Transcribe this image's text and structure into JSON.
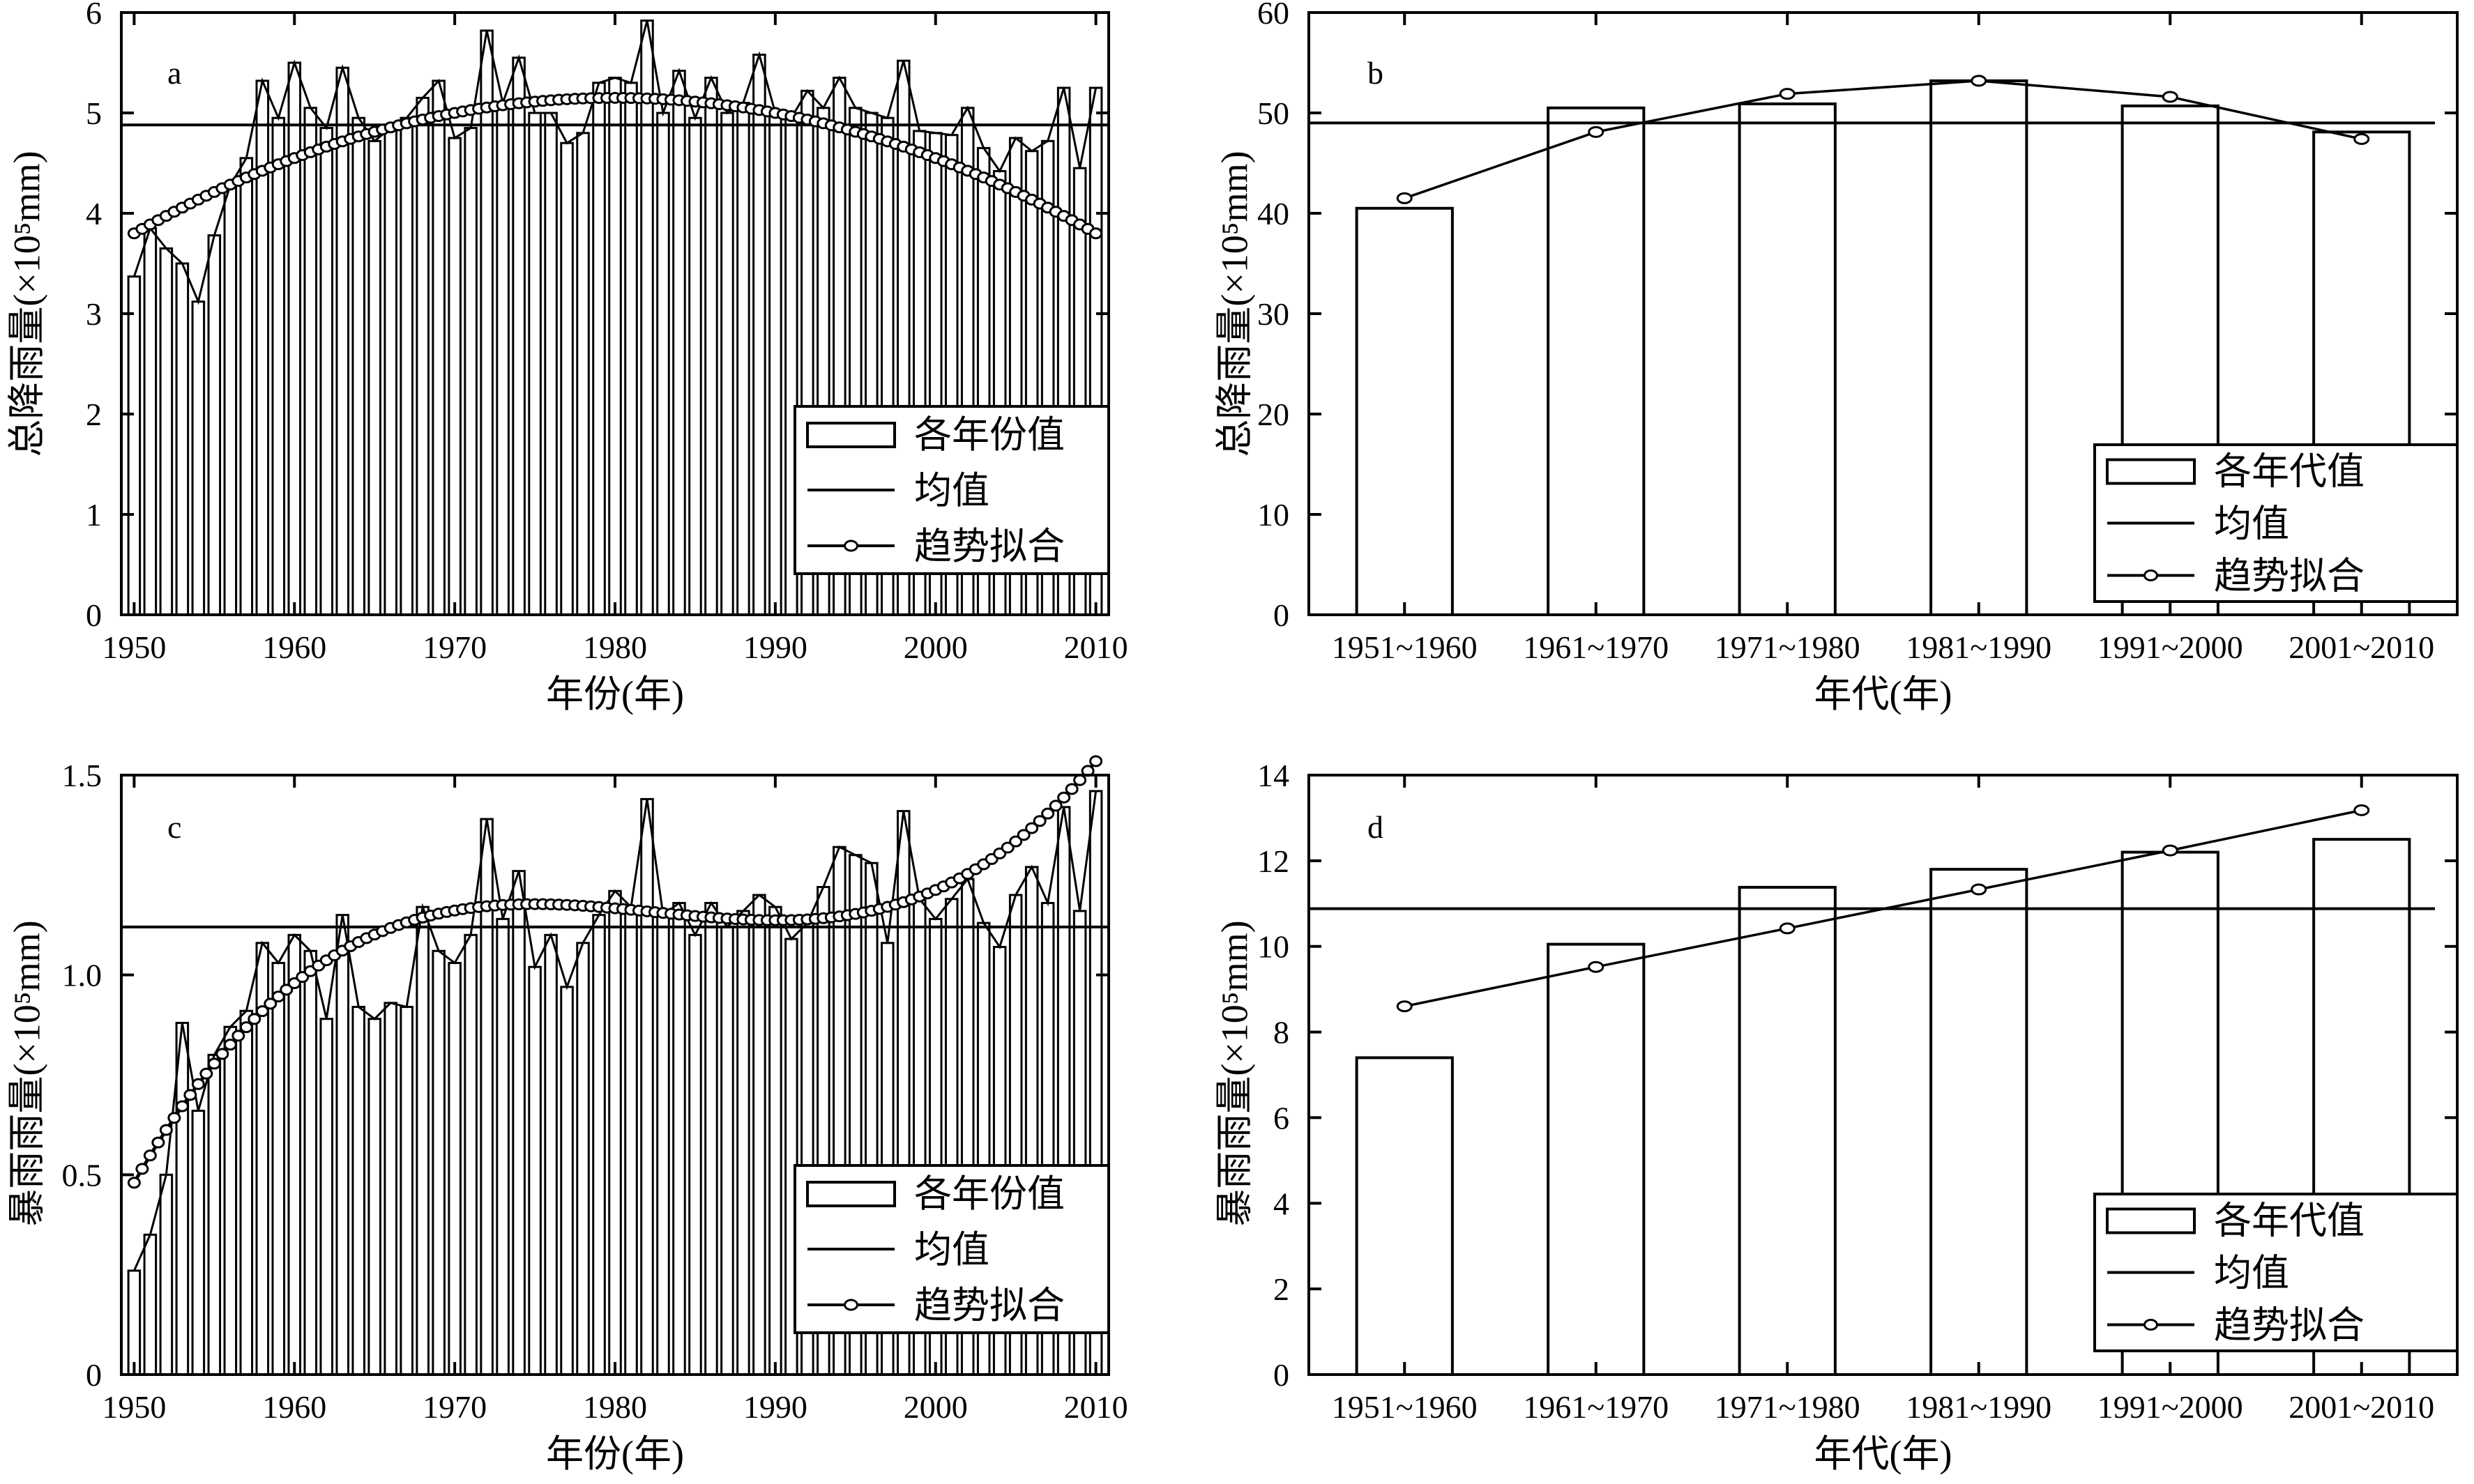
{
  "chart_data": [
    {
      "type": "bar",
      "panel_letter": "a",
      "xlabel": "年份(年)",
      "ylabel": "总降雨量(×10⁵mm)",
      "x": [
        1950,
        1951,
        1952,
        1953,
        1954,
        1955,
        1956,
        1957,
        1958,
        1959,
        1960,
        1961,
        1962,
        1963,
        1964,
        1965,
        1966,
        1967,
        1968,
        1969,
        1970,
        1971,
        1972,
        1973,
        1974,
        1975,
        1976,
        1977,
        1978,
        1979,
        1980,
        1981,
        1982,
        1983,
        1984,
        1985,
        1986,
        1987,
        1988,
        1989,
        1990,
        1991,
        1992,
        1993,
        1994,
        1995,
        1996,
        1997,
        1998,
        1999,
        2000,
        2001,
        2002,
        2003,
        2004,
        2005,
        2006,
        2007,
        2008,
        2009,
        2010
      ],
      "xlim": [
        1949.2,
        2010.8
      ],
      "ylim": [
        0,
        6
      ],
      "xticks": [
        1950,
        1960,
        1970,
        1980,
        1990,
        2000,
        2010
      ],
      "xtick_labels": [
        "1950",
        "1960",
        "1970",
        "1980",
        "1990",
        "2000",
        "2010"
      ],
      "yticks": [
        0,
        1,
        2,
        3,
        4,
        5,
        6
      ],
      "ytick_labels": [
        "0",
        "1",
        "2",
        "3",
        "4",
        "5",
        "6"
      ],
      "series": [
        {
          "name": "各年份值",
          "kind": "bar",
          "values": [
            3.37,
            3.85,
            3.65,
            3.5,
            3.12,
            3.78,
            4.28,
            4.55,
            5.32,
            4.95,
            5.5,
            5.05,
            4.85,
            5.45,
            4.95,
            4.72,
            4.85,
            4.95,
            5.15,
            5.32,
            4.75,
            4.85,
            5.82,
            5.1,
            5.55,
            5.0,
            5.0,
            4.7,
            4.8,
            5.3,
            5.35,
            5.3,
            5.92,
            5.0,
            5.42,
            4.95,
            5.35,
            5.0,
            5.1,
            5.58,
            5.0,
            4.95,
            5.22,
            5.05,
            5.35,
            5.05,
            5.0,
            4.95,
            5.52,
            4.82,
            4.8,
            4.78,
            5.05,
            4.65,
            4.42,
            4.75,
            4.62,
            4.72,
            5.25,
            4.45,
            5.25
          ]
        },
        {
          "name": "均值",
          "kind": "hline",
          "value": 4.88
        },
        {
          "name": "趋势拟合",
          "kind": "polyfit",
          "mode": "annual",
          "coefficients": [
            3.8,
            0.09,
            -0.0015
          ]
        }
      ],
      "legend": [
        "各年份值",
        "均值",
        "趋势拟合"
      ],
      "legend_position": "bottom-right"
    },
    {
      "type": "bar",
      "panel_letter": "b",
      "xlabel": "年代(年)",
      "ylabel": "总降雨量(×10⁵mm)",
      "categories": [
        "1951~1960",
        "1961~1970",
        "1971~1980",
        "1981~1990",
        "1991~2000",
        "2001~2010"
      ],
      "ylim": [
        0,
        60
      ],
      "yticks": [
        0,
        10,
        20,
        30,
        40,
        50,
        60
      ],
      "ytick_labels": [
        "0",
        "10",
        "20",
        "30",
        "40",
        "50",
        "60"
      ],
      "series": [
        {
          "name": "各年代值",
          "kind": "bar",
          "values": [
            40.5,
            50.5,
            50.9,
            53.2,
            50.7,
            48.1
          ]
        },
        {
          "name": "均值",
          "kind": "hline",
          "value": 49.0
        },
        {
          "name": "趋势拟合",
          "kind": "line",
          "values": [
            41.5,
            48.1,
            51.9,
            53.2,
            51.6,
            47.4
          ]
        }
      ],
      "legend": [
        "各年代值",
        "均值",
        "趋势拟合"
      ],
      "legend_position": "bottom-right"
    },
    {
      "type": "bar",
      "panel_letter": "c",
      "xlabel": "年份(年)",
      "ylabel": "暴雨雨量(×10⁵mm)",
      "x": [
        1950,
        1951,
        1952,
        1953,
        1954,
        1955,
        1956,
        1957,
        1958,
        1959,
        1960,
        1961,
        1962,
        1963,
        1964,
        1965,
        1966,
        1967,
        1968,
        1969,
        1970,
        1971,
        1972,
        1973,
        1974,
        1975,
        1976,
        1977,
        1978,
        1979,
        1980,
        1981,
        1982,
        1983,
        1984,
        1985,
        1986,
        1987,
        1988,
        1989,
        1990,
        1991,
        1992,
        1993,
        1994,
        1995,
        1996,
        1997,
        1998,
        1999,
        2000,
        2001,
        2002,
        2003,
        2004,
        2005,
        2006,
        2007,
        2008,
        2009,
        2010
      ],
      "xlim": [
        1949.2,
        2010.8
      ],
      "ylim": [
        0,
        1.5
      ],
      "xticks": [
        1950,
        1960,
        1970,
        1980,
        1990,
        2000,
        2010
      ],
      "xtick_labels": [
        "1950",
        "1960",
        "1970",
        "1980",
        "1990",
        "2000",
        "2010"
      ],
      "yticks": [
        0,
        0.5,
        1.0,
        1.5
      ],
      "ytick_labels": [
        "0",
        "0.5",
        "1.0",
        "1.5"
      ],
      "series": [
        {
          "name": "各年份值",
          "kind": "bar",
          "values": [
            0.26,
            0.35,
            0.5,
            0.88,
            0.66,
            0.8,
            0.87,
            0.91,
            1.08,
            1.03,
            1.1,
            1.06,
            0.89,
            1.15,
            0.92,
            0.89,
            0.93,
            0.92,
            1.17,
            1.06,
            1.03,
            1.1,
            1.39,
            1.14,
            1.26,
            1.02,
            1.1,
            0.97,
            1.08,
            1.15,
            1.21,
            1.17,
            1.44,
            1.15,
            1.18,
            1.1,
            1.18,
            1.12,
            1.16,
            1.2,
            1.17,
            1.09,
            1.13,
            1.22,
            1.32,
            1.3,
            1.28,
            1.08,
            1.41,
            1.19,
            1.14,
            1.19,
            1.24,
            1.13,
            1.07,
            1.2,
            1.27,
            1.18,
            1.42,
            1.16,
            1.46
          ]
        },
        {
          "name": "均值",
          "kind": "hline",
          "value": 1.12
        },
        {
          "name": "趋势拟合",
          "kind": "polyfit",
          "mode": "annual",
          "coefficients": [
            0.48,
            0.0705,
            -0.002292,
            2.35e-05
          ]
        }
      ],
      "legend": [
        "各年份值",
        "均值",
        "趋势拟合"
      ],
      "legend_position": "bottom-right"
    },
    {
      "type": "bar",
      "panel_letter": "d",
      "xlabel": "年代(年)",
      "ylabel": "暴雨雨量(×10⁵mm)",
      "categories": [
        "1951~1960",
        "1961~1970",
        "1971~1980",
        "1981~1990",
        "1991~2000",
        "2001~2010"
      ],
      "ylim": [
        0,
        14
      ],
      "yticks": [
        0,
        2,
        4,
        6,
        8,
        10,
        12,
        14
      ],
      "ytick_labels": [
        "0",
        "2",
        "4",
        "6",
        "8",
        "10",
        "12",
        "14"
      ],
      "series": [
        {
          "name": "各年代值",
          "kind": "bar",
          "values": [
            7.4,
            10.05,
            11.38,
            11.8,
            12.2,
            12.5
          ]
        },
        {
          "name": "均值",
          "kind": "hline",
          "value": 10.88
        },
        {
          "name": "趋势拟合",
          "kind": "line",
          "values": [
            8.6,
            9.52,
            10.42,
            11.33,
            12.24,
            13.18
          ]
        }
      ],
      "legend": [
        "各年代值",
        "均值",
        "趋势拟合"
      ],
      "legend_position": "bottom-right"
    }
  ]
}
